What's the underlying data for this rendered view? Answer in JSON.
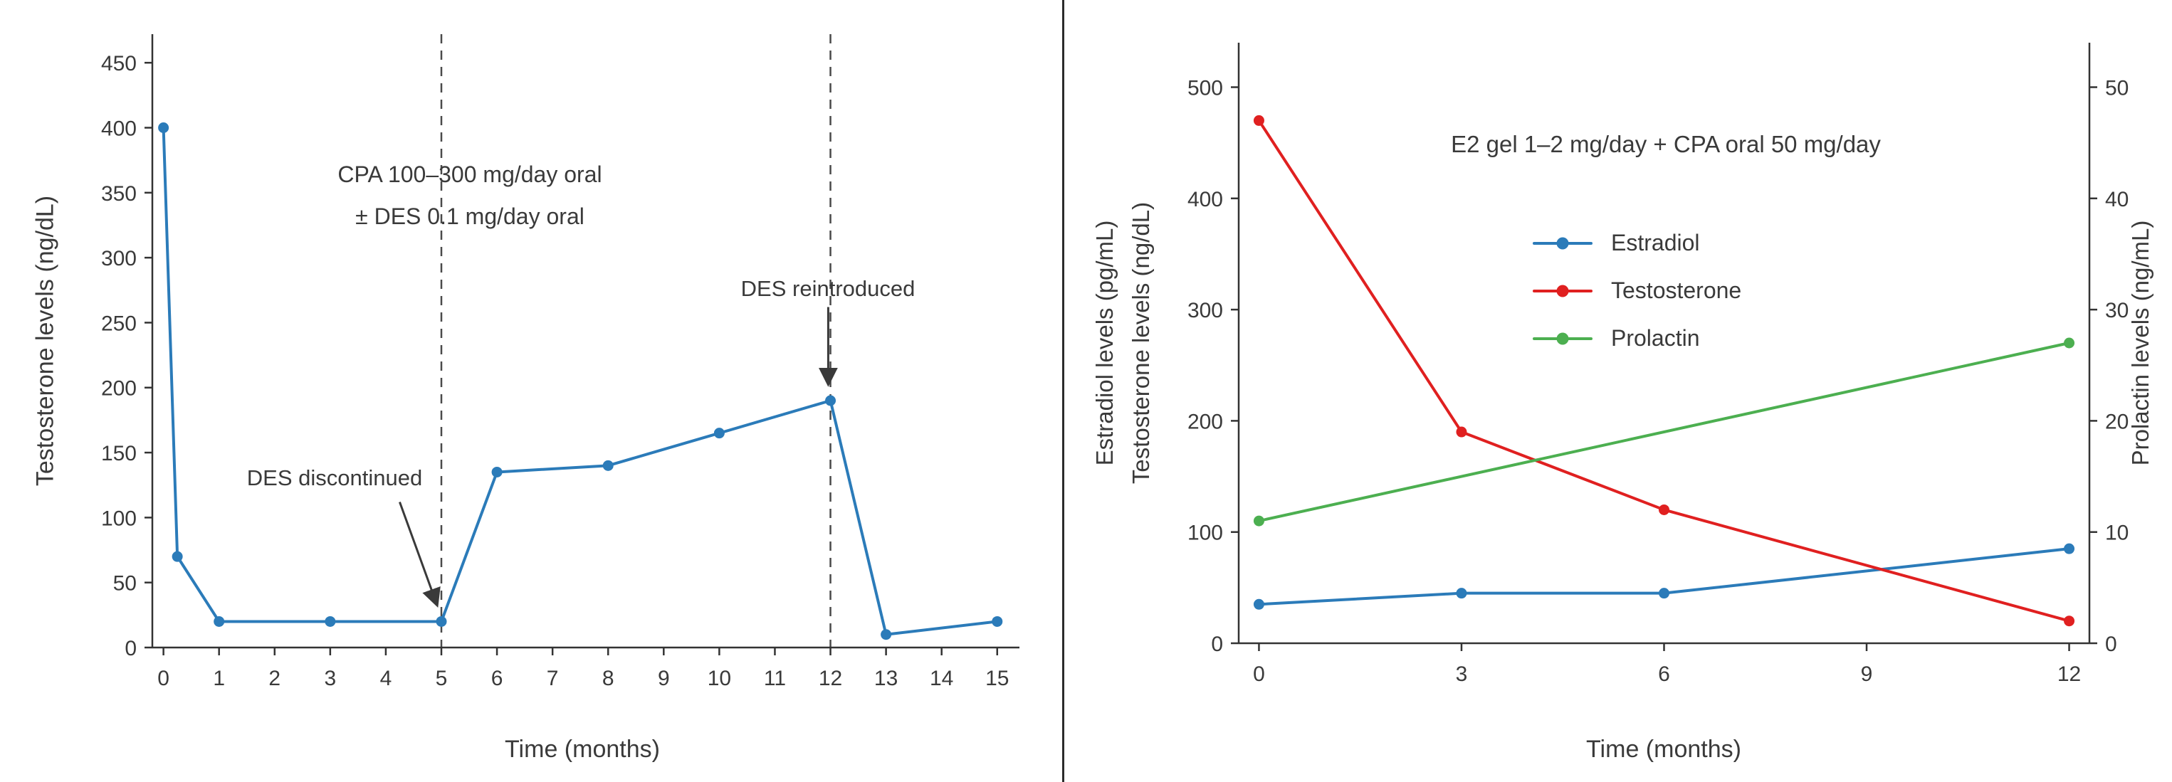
{
  "figure": {
    "background": "#ffffff",
    "divider_color": "#2b2b2b",
    "text_color": "#3a3a3a"
  },
  "chart_data": [
    {
      "type": "line",
      "title": "",
      "xlabel": "Time (months)",
      "ylabel": "Testosterone levels (ng/dL)",
      "xlim": [
        -0.2,
        15.4
      ],
      "ylim": [
        0,
        472
      ],
      "xticks": [
        0,
        1,
        2,
        3,
        4,
        5,
        6,
        7,
        8,
        9,
        10,
        11,
        12,
        13,
        14,
        15
      ],
      "yticks": [
        0,
        50,
        100,
        150,
        200,
        250,
        300,
        350,
        400,
        450
      ],
      "grid": false,
      "legend": "none",
      "axis_color": "#333333",
      "text_color": "#3a3a3a",
      "vlines": [
        {
          "x": 5,
          "style": "dashed"
        },
        {
          "x": 12,
          "style": "dashed"
        }
      ],
      "series": [
        {
          "name": "Testosterone",
          "color": "#2b7bb9",
          "axis": "left",
          "x": [
            0,
            0.25,
            1,
            3,
            5,
            6,
            8,
            10,
            12,
            13,
            15
          ],
          "y": [
            400,
            70,
            20,
            20,
            20,
            135,
            140,
            165,
            190,
            10,
            20
          ]
        }
      ],
      "annotations": {
        "regimen": [
          "CPA 100–300 mg/day oral",
          "± DES 0.1 mg/day oral"
        ],
        "des_discontinued": "DES discontinued",
        "des_reintroduced": "DES reintroduced"
      },
      "arrows": [
        {
          "from": [
            4.25,
            112
          ],
          "to": [
            4.92,
            33
          ]
        },
        {
          "from": [
            11.96,
            262
          ],
          "to": [
            11.96,
            203
          ]
        }
      ]
    },
    {
      "type": "line",
      "title": "E2 gel 1–2 mg/day + CPA oral 50 mg/day",
      "xlabel": "Time (months)",
      "ylabel_left_lines": [
        "Estradiol levels (pg/mL)",
        "Testosterone levels (ng/dL)"
      ],
      "ylabel_right": "Prolactin levels (ng/mL)",
      "xlim": [
        -0.3,
        12.3
      ],
      "ylim": [
        0,
        540
      ],
      "ylim_right": [
        0,
        54
      ],
      "xticks": [
        0,
        3,
        6,
        9,
        12
      ],
      "yticks": [
        0,
        100,
        200,
        300,
        400,
        500
      ],
      "yticks_right": [
        0,
        10,
        20,
        30,
        40,
        50
      ],
      "grid": false,
      "legend": "inside upper-left-center",
      "axis_color": "#333333",
      "text_color": "#3a3a3a",
      "series": [
        {
          "name": "Estradiol",
          "color": "#2b7bb9",
          "axis": "left",
          "x": [
            0,
            3,
            6,
            12
          ],
          "y": [
            35,
            45,
            45,
            85
          ]
        },
        {
          "name": "Testosterone",
          "color": "#e02020",
          "axis": "left",
          "x": [
            0,
            3,
            6,
            12
          ],
          "y": [
            470,
            190,
            120,
            20
          ]
        },
        {
          "name": "Prolactin",
          "color": "#4caf50",
          "axis": "right",
          "x": [
            0,
            12
          ],
          "y": [
            11,
            27
          ]
        }
      ]
    }
  ]
}
